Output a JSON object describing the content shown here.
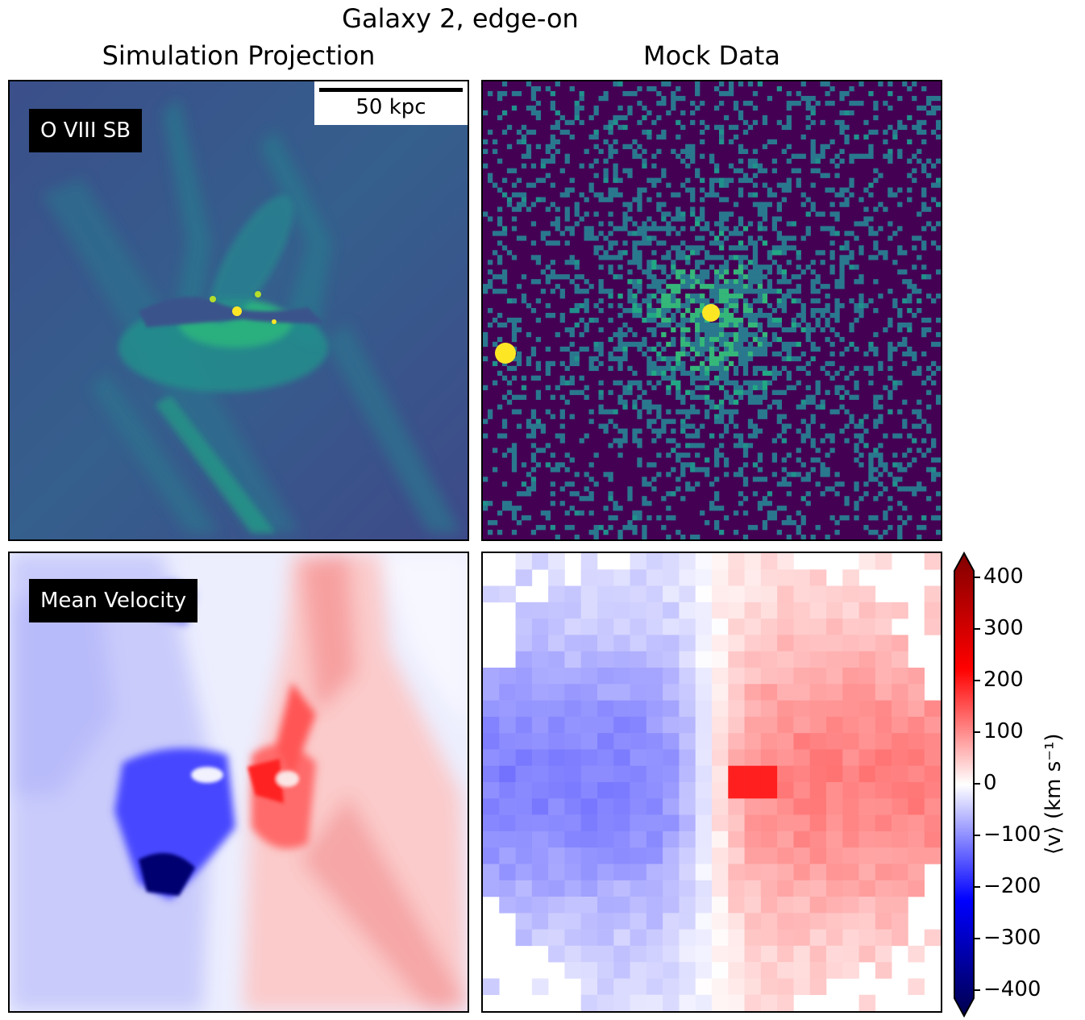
{
  "figure": {
    "suptitle": "Galaxy 2, edge-on",
    "column_titles": [
      "Simulation Projection",
      "Mock Data"
    ]
  },
  "panels": {
    "sb_label": "O VIII SB",
    "velocity_label": "Mean Velocity",
    "scalebar_label": "50 kpc"
  },
  "colorbar": {
    "label": "⟨v⟩ (km s⁻¹)",
    "ticks": [
      "400",
      "300",
      "200",
      "100",
      "0",
      "−100",
      "−200",
      "−300",
      "−400"
    ]
  },
  "colors": {
    "viridis_dark": "#440154",
    "viridis_mid": "#31688e",
    "viridis_green": "#35b779",
    "viridis_yellow": "#fde725",
    "seismic_blue": "#0000ff",
    "seismic_red": "#ff0000"
  },
  "chart_data": [
    {
      "type": "heatmap",
      "name": "O VIII SB",
      "column": "Simulation Projection",
      "colormap": "viridis",
      "bright_spots_kpc": [
        {
          "x": 0,
          "y": 0
        },
        {
          "x": -5,
          "y": 3
        },
        {
          "x": 4,
          "y": -1
        }
      ]
    },
    {
      "type": "heatmap",
      "name": "O VIII SB mock",
      "column": "Mock Data",
      "colormap": "viridis",
      "bright_spots_kpc": [
        {
          "x": 0,
          "y": 0
        },
        {
          "x": -46,
          "y": -5
        }
      ]
    },
    {
      "type": "heatmap",
      "name": "Mean Velocity",
      "column": "Simulation Projection",
      "colormap": "seismic",
      "clim": [
        -400,
        400
      ],
      "unit": "km s^-1"
    },
    {
      "type": "heatmap",
      "name": "Mean Velocity mock",
      "column": "Mock Data",
      "colormap": "seismic",
      "clim": [
        -400,
        400
      ],
      "unit": "km s^-1"
    }
  ]
}
